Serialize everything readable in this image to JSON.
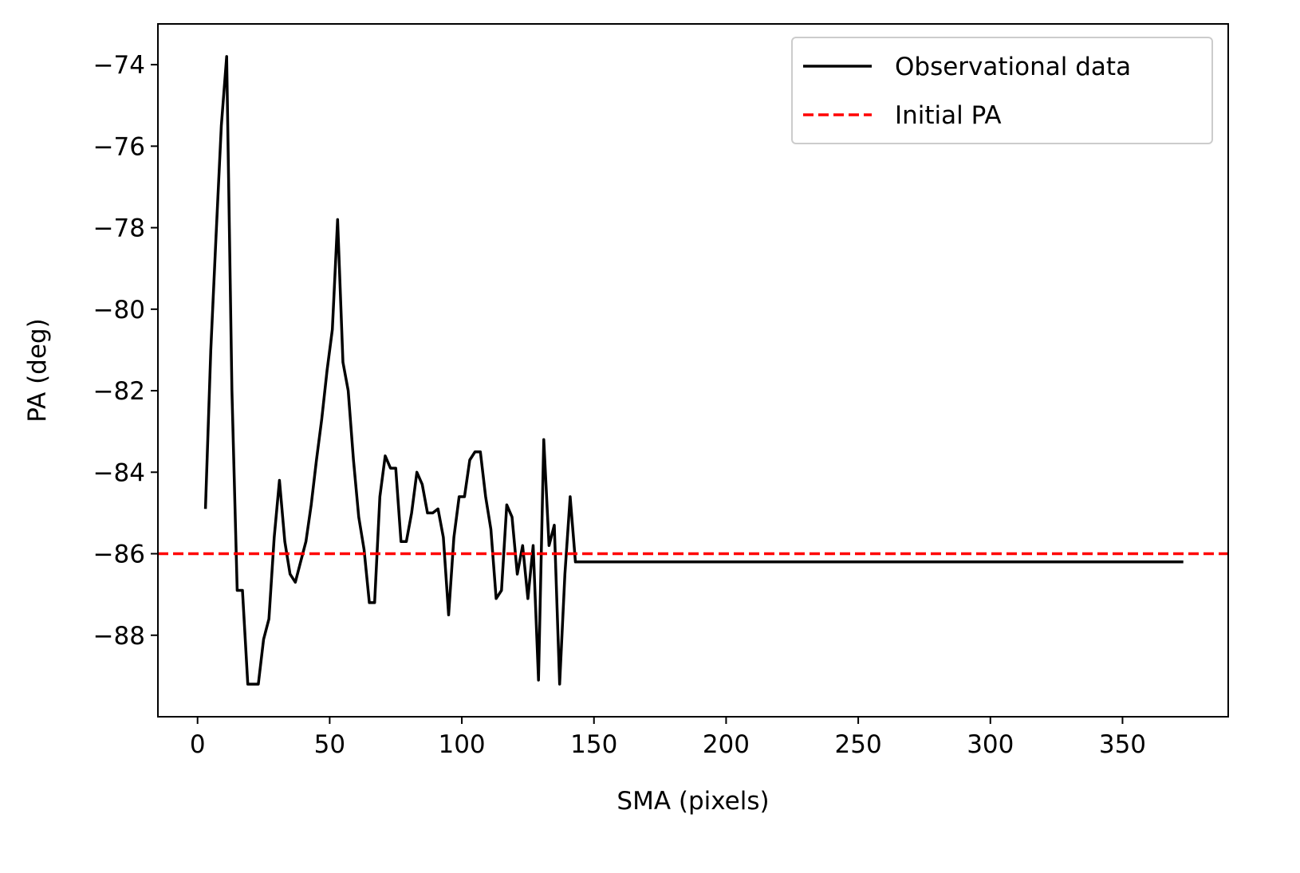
{
  "chart_data": {
    "type": "line",
    "title": "",
    "xlabel": "SMA (pixels)",
    "ylabel": "PA (deg)",
    "xlim": [
      -15,
      390
    ],
    "ylim": [
      -90,
      -73
    ],
    "xticks": [
      0,
      50,
      100,
      150,
      200,
      250,
      300,
      350
    ],
    "yticks": [
      -74,
      -76,
      -78,
      -80,
      -82,
      -84,
      -86,
      -88
    ],
    "xtick_labels": [
      "0",
      "50",
      "100",
      "150",
      "200",
      "250",
      "300",
      "350"
    ],
    "ytick_labels": [
      "−74",
      "−76",
      "−78",
      "−80",
      "−82",
      "−84",
      "−86",
      "−88"
    ],
    "grid": false,
    "legend": "upper right",
    "series": [
      {
        "name": "Observational data",
        "color": "#000000",
        "style": "solid",
        "x": [
          3,
          5,
          7,
          9,
          11,
          13,
          15,
          17,
          19,
          21,
          23,
          25,
          27,
          29,
          31,
          33,
          35,
          37,
          39,
          41,
          43,
          45,
          47,
          49,
          51,
          53,
          55,
          57,
          59,
          61,
          63,
          65,
          67,
          69,
          71,
          73,
          75,
          77,
          79,
          81,
          83,
          85,
          87,
          89,
          91,
          93,
          95,
          97,
          99,
          101,
          103,
          105,
          107,
          109,
          111,
          113,
          115,
          117,
          119,
          121,
          123,
          125,
          127,
          129,
          131,
          133,
          135,
          137,
          139,
          141,
          143,
          145,
          373
        ],
        "y": [
          -84.9,
          -81.0,
          -78.2,
          -75.5,
          -73.8,
          -82.0,
          -86.9,
          -86.9,
          -89.2,
          -89.2,
          -89.2,
          -88.1,
          -87.6,
          -85.6,
          -84.2,
          -85.7,
          -86.5,
          -86.7,
          -86.2,
          -85.7,
          -84.8,
          -83.7,
          -82.7,
          -81.5,
          -80.5,
          -77.8,
          -81.3,
          -82.0,
          -83.7,
          -85.1,
          -85.9,
          -87.2,
          -87.2,
          -84.6,
          -83.6,
          -83.9,
          -83.9,
          -85.7,
          -85.7,
          -85.0,
          -84.0,
          -84.3,
          -85.0,
          -85.0,
          -84.9,
          -85.6,
          -87.5,
          -85.6,
          -84.6,
          -84.6,
          -83.7,
          -83.5,
          -83.5,
          -84.6,
          -85.4,
          -87.1,
          -86.9,
          -84.8,
          -85.1,
          -86.5,
          -85.8,
          -87.1,
          -85.8,
          -89.1,
          -83.2,
          -85.8,
          -85.3,
          -89.2,
          -86.5,
          -84.6,
          -86.2,
          -86.2,
          -86.2
        ]
      },
      {
        "name": "Initial PA",
        "color": "#ff0000",
        "style": "dashed",
        "y_constant": -86.0
      }
    ]
  }
}
